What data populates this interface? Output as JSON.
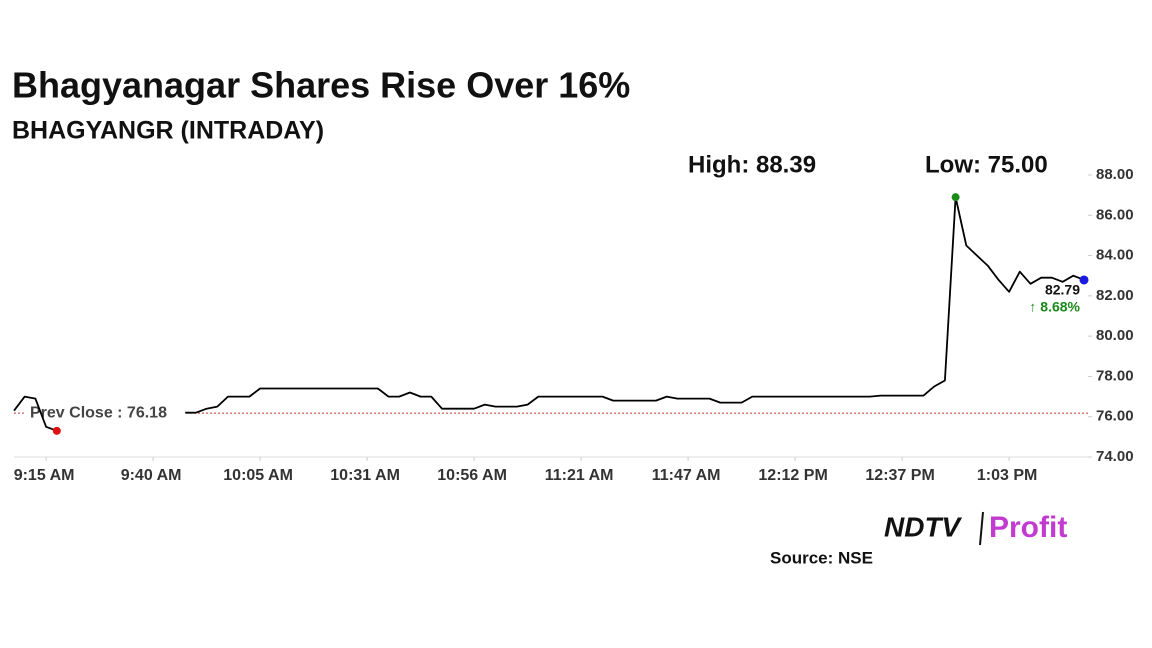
{
  "chart_data": {
    "type": "line",
    "title": "Bhagyanagar Shares Rise Over 16%",
    "subtitle": "BHAGYANGR (INTRADAY)",
    "high_label": "High: 88.39",
    "low_label": "Low: 75.00",
    "prev_close": 76.18,
    "prev_close_label": "Prev Close : 76.18",
    "prev_close_color": "#c0392b",
    "last_price_label": "82.79",
    "change_label": "↑ 8.68%",
    "change_color": "#1a8a1a",
    "high_color": "#1a8a1a",
    "low_color": "#e01010",
    "last_color": "#1a1adf",
    "source": "Source: NSE",
    "logo": {
      "left": "NDTV",
      "right": "Profit"
    },
    "categories": [
      null,
      null,
      null,
      "9:15 AM",
      null,
      null,
      null,
      null,
      null,
      null,
      null,
      null,
      null,
      "9:40 AM",
      null,
      null,
      null,
      null,
      null,
      null,
      null,
      null,
      null,
      "10:05 AM",
      null,
      null,
      null,
      null,
      null,
      null,
      null,
      null,
      null,
      "10:31 AM",
      null,
      null,
      null,
      null,
      null,
      null,
      null,
      null,
      null,
      "10:56 AM",
      null,
      null,
      null,
      null,
      null,
      null,
      null,
      null,
      null,
      "11:21 AM",
      null,
      null,
      null,
      null,
      null,
      null,
      null,
      null,
      null,
      "11:47 AM",
      null,
      null,
      null,
      null,
      null,
      null,
      null,
      null,
      null,
      "12:12 PM",
      null,
      null,
      null,
      null,
      null,
      null,
      null,
      null,
      null,
      "12:37 PM",
      null,
      null,
      null,
      null,
      null,
      null,
      null,
      null,
      null,
      "1:03 PM",
      null,
      null,
      null,
      null,
      null,
      null,
      null
    ],
    "series": [
      {
        "name": "BHAGYANGR",
        "color": "#000000",
        "values": [
          76.3,
          77.0,
          76.9,
          75.5,
          75.3,
          null,
          null,
          null,
          null,
          null,
          null,
          null,
          null,
          null,
          null,
          null,
          76.2,
          76.2,
          76.4,
          76.5,
          77.0,
          77.0,
          77.0,
          77.4,
          77.4,
          77.4,
          77.4,
          77.4,
          77.4,
          77.4,
          77.4,
          77.4,
          77.4,
          77.4,
          77.4,
          77.0,
          77.0,
          77.2,
          77.0,
          77.0,
          76.4,
          76.4,
          76.4,
          76.4,
          76.6,
          76.5,
          76.5,
          76.5,
          76.6,
          77.0,
          77.0,
          77.0,
          77.0,
          77.0,
          77.0,
          77.0,
          76.8,
          76.8,
          76.8,
          76.8,
          76.8,
          77.0,
          76.9,
          76.9,
          76.9,
          76.9,
          76.7,
          76.7,
          76.7,
          77.0,
          77.0,
          77.0,
          77.0,
          77.0,
          77.0,
          77.0,
          77.0,
          77.0,
          77.0,
          77.0,
          77.0,
          77.05,
          77.05,
          77.05,
          77.05,
          77.05,
          77.5,
          77.8,
          86.9,
          84.5,
          84.0,
          83.5,
          82.8,
          82.2,
          83.2,
          82.6,
          82.9,
          82.9,
          82.7,
          83.0,
          82.79
        ]
      }
    ],
    "ylim": [
      74,
      88
    ],
    "yticks": [
      {
        "value": 74,
        "label": "74.00"
      },
      {
        "value": 76,
        "label": "76.00"
      },
      {
        "value": 78,
        "label": "78.00"
      },
      {
        "value": 80,
        "label": "80.00"
      },
      {
        "value": 82,
        "label": "82.00"
      },
      {
        "value": 84,
        "label": "84.00"
      },
      {
        "value": 86,
        "label": "86.00"
      },
      {
        "value": 88,
        "label": "88.00"
      }
    ]
  }
}
